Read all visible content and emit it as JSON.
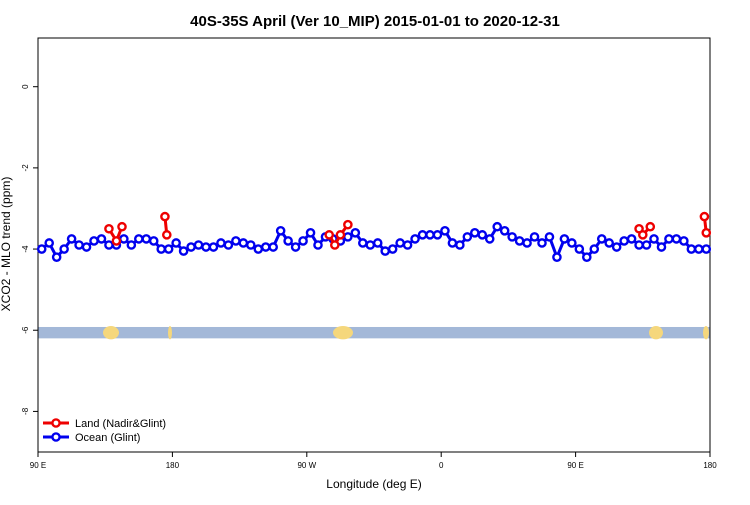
{
  "chart_data": {
    "type": "line",
    "title": "40S-35S April (Ver 10_MIP)   2015-01-01 to 2020-12-31",
    "xlabel": "Longitude (deg E)",
    "ylabel": "XCO2 - MLO trend (ppm)",
    "xlim": [
      90,
      450
    ],
    "ylim": [
      -9.0,
      1.2
    ],
    "x_ticks": [
      {
        "value": 90,
        "label": "90 E"
      },
      {
        "value": 162,
        "label": "180"
      },
      {
        "value": 234,
        "label": "90 W"
      },
      {
        "value": 306,
        "label": "0"
      },
      {
        "value": 378,
        "label": "90 E"
      },
      {
        "value": 450,
        "label": "180"
      }
    ],
    "y_ticks": [
      0,
      -2,
      -4,
      -6,
      -8
    ],
    "grid": false,
    "legend_position": "bottom-left",
    "land_strip": {
      "y_top": -5.92,
      "y_bottom": -6.2,
      "ocean_color": "#a3b8d8",
      "land_color": "#f5d77c"
    },
    "series": [
      {
        "name": "Ocean (Glint)",
        "color": "#0000ee",
        "x": [
          92,
          96,
          100,
          104,
          108,
          112,
          116,
          120,
          124,
          128,
          132,
          136,
          140,
          144,
          148,
          152,
          156,
          160,
          164,
          168,
          172,
          176,
          180,
          184,
          188,
          192,
          196,
          200,
          204,
          208,
          212,
          216,
          220,
          224,
          228,
          232,
          236,
          240,
          244,
          248,
          252,
          256,
          260,
          264,
          268,
          272,
          276,
          280,
          284,
          288,
          292,
          296,
          300,
          304,
          308,
          312,
          316,
          320,
          324,
          328,
          332,
          336,
          340,
          344,
          348,
          352,
          356,
          360,
          364,
          368,
          372,
          376,
          380,
          384,
          388,
          392,
          396,
          400,
          404,
          408,
          412,
          416,
          420,
          424,
          428,
          432,
          436,
          440,
          444,
          448
        ],
        "y": [
          -4.0,
          -3.85,
          -4.2,
          -4.0,
          -3.75,
          -3.9,
          -3.95,
          -3.8,
          -3.75,
          -3.9,
          -3.9,
          -3.75,
          -3.9,
          -3.75,
          -3.75,
          -3.8,
          -4.0,
          -4.0,
          -3.85,
          -4.05,
          -3.95,
          -3.9,
          -3.95,
          -3.95,
          -3.85,
          -3.9,
          -3.8,
          -3.85,
          -3.9,
          -4.0,
          -3.95,
          -3.95,
          -3.55,
          -3.8,
          -3.95,
          -3.8,
          -3.6,
          -3.9,
          -3.7,
          -3.75,
          -3.8,
          -3.7,
          -3.6,
          -3.85,
          -3.9,
          -3.85,
          -4.05,
          -4.0,
          -3.85,
          -3.9,
          -3.75,
          -3.65,
          -3.65,
          -3.65,
          -3.55,
          -3.85,
          -3.9,
          -3.7,
          -3.6,
          -3.65,
          -3.75,
          -3.45,
          -3.55,
          -3.7,
          -3.8,
          -3.85,
          -3.7,
          -3.85,
          -3.7,
          -4.2,
          -3.75,
          -3.85,
          -4.0,
          -4.2,
          -4.0,
          -3.75,
          -3.85,
          -3.95,
          -3.8,
          -3.75,
          -3.9,
          -3.9,
          -3.75,
          -3.95,
          -3.75,
          -3.75,
          -3.8,
          -4.0,
          -4.0,
          -4.0
        ]
      },
      {
        "name": "Land (Nadir&Glint)",
        "color": "#ee0000",
        "segments": [
          {
            "x": [
              128,
              132,
              135
            ],
            "y": [
              -3.5,
              -3.8,
              -3.45
            ]
          },
          {
            "x": [
              158,
              159
            ],
            "y": [
              -3.2,
              -3.65
            ]
          },
          {
            "x": [
              246,
              249,
              252,
              256
            ],
            "y": [
              -3.65,
              -3.9,
              -3.65,
              -3.4
            ]
          },
          {
            "x": [
              412,
              414,
              418
            ],
            "y": [
              -3.5,
              -3.65,
              -3.45
            ]
          },
          {
            "x": [
              447,
              448
            ],
            "y": [
              -3.2,
              -3.6
            ]
          }
        ]
      }
    ]
  }
}
